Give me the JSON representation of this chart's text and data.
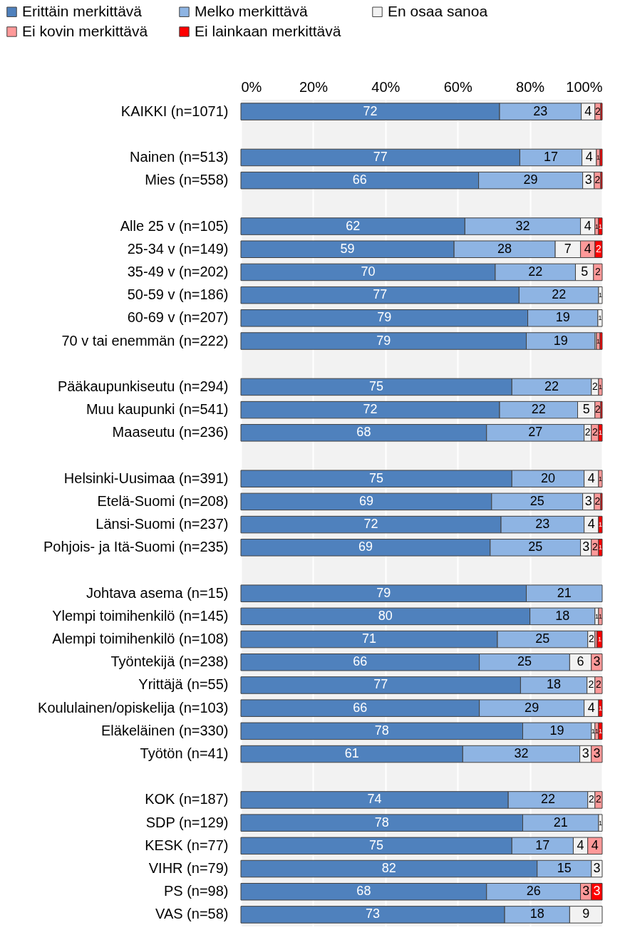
{
  "chart_data": {
    "type": "bar",
    "orientation": "horizontal",
    "stacked": true,
    "legend": "top left",
    "grid": "x",
    "categories": [
      "KAIKKI (n=1071)",
      null,
      "Nainen (n=513)",
      "Mies (n=558)",
      null,
      "Alle 25 v (n=105)",
      "25-34 v (n=149)",
      "35-49 v (n=202)",
      "50-59 v (n=186)",
      "60-69 v (n=207)",
      "70 v tai enemmän (n=222)",
      null,
      "Pääkaupunkiseutu (n=294)",
      "Muu kaupunki (n=541)",
      "Maaseutu (n=236)",
      null,
      "Helsinki-Uusimaa (n=391)",
      "Etelä-Suomi (n=208)",
      "Länsi-Suomi (n=237)",
      "Pohjois- ja Itä-Suomi (n=235)",
      null,
      "Johtava asema (n=15)",
      "Ylempi toimihenkilö (n=145)",
      "Alempi toimihenkilö (n=108)",
      "Työntekijä (n=238)",
      "Yrittäjä (n=55)",
      "Koululainen/opiskelija (n=103)",
      "Eläkeläinen (n=330)",
      "Työtön (n=41)",
      null,
      "KOK (n=187)",
      "SDP (n=129)",
      "KESK (n=77)",
      "VIHR (n=79)",
      "PS (n=98)",
      "VAS (n=58)"
    ],
    "xlim": [
      0,
      100
    ],
    "xticks": [
      {
        "value": 0,
        "label": "0%"
      },
      {
        "value": 20,
        "label": "20%"
      },
      {
        "value": 40,
        "label": "40%"
      },
      {
        "value": 60,
        "label": "60%"
      },
      {
        "value": 80,
        "label": "80%"
      },
      {
        "value": 100,
        "label": "100%"
      }
    ],
    "series": [
      {
        "name": "Erittäin merkittävä",
        "color": "#4f81bd",
        "values": [
          71.6,
          null,
          77.2,
          65.8,
          null,
          62,
          59,
          70.4,
          77,
          79.4,
          79,
          null,
          75,
          71.6,
          68,
          null,
          75,
          69.4,
          72,
          69,
          null,
          79,
          80,
          71,
          66,
          77.4,
          66,
          78,
          61.4,
          null,
          74,
          78,
          75,
          82,
          68,
          73
        ],
        "value_labels": [
          "72",
          null,
          "77",
          "66",
          null,
          "62",
          "59",
          "70",
          "77",
          "79",
          "79",
          null,
          "75",
          "72",
          "68",
          null,
          "75",
          "69",
          "72",
          "69",
          null,
          "79",
          "80",
          "71",
          "66",
          "77",
          "66",
          "78",
          "61",
          null,
          "74",
          "78",
          "75",
          "82",
          "68",
          "73"
        ]
      },
      {
        "name": "Melko merkittävä",
        "color": "#8eb4e3",
        "values": [
          22.6,
          null,
          17.2,
          28.8,
          null,
          32,
          28,
          22.2,
          22,
          19.4,
          19,
          null,
          22,
          21.6,
          27,
          null,
          20,
          25.2,
          23,
          25,
          null,
          21,
          18,
          25,
          25,
          18.4,
          29,
          19,
          32.4,
          null,
          22,
          21,
          17,
          15,
          26,
          18
        ],
        "value_labels": [
          "23",
          null,
          "17",
          "29",
          null,
          "32",
          "28",
          "22",
          "22",
          "19",
          "19",
          null,
          "22",
          "22",
          "27",
          null,
          "20",
          "25",
          "23",
          "25",
          null,
          "21",
          "18",
          "25",
          "25",
          "18",
          "29",
          "19",
          "32",
          null,
          "22",
          "21",
          "17",
          "15",
          "26",
          "18"
        ]
      },
      {
        "name": "En osaa sanoa",
        "color": "#f2f2f2",
        "values": [
          3.8,
          null,
          4,
          3.2,
          null,
          4,
          7,
          5,
          1,
          1.2,
          0.4,
          null,
          2,
          4.8,
          2,
          null,
          4,
          3.2,
          4,
          3,
          null,
          null,
          1,
          2,
          6,
          2.2,
          4,
          1,
          3.2,
          null,
          2,
          1,
          4,
          3,
          null,
          9
        ],
        "value_labels": [
          "4",
          null,
          "4",
          "3",
          null,
          "4",
          "7",
          "5",
          "1",
          "1",
          null,
          null,
          "2",
          "5",
          "2",
          null,
          "4",
          "3",
          "4",
          "3",
          null,
          null,
          "1",
          "2",
          "6",
          "2",
          "4",
          "1",
          "3",
          null,
          "2",
          "1",
          "4",
          "3",
          null,
          "9"
        ]
      },
      {
        "name": "Ei kovin merkittävä",
        "color": "#ff9999",
        "values": [
          1.6,
          null,
          1,
          1.8,
          null,
          1,
          4,
          2.4,
          null,
          null,
          1,
          null,
          1,
          1.6,
          2,
          null,
          1,
          1.8,
          null,
          2,
          null,
          null,
          1,
          0.6,
          3,
          2,
          null,
          1,
          3,
          null,
          2,
          null,
          4,
          null,
          3,
          null
        ],
        "value_labels": [
          "2",
          null,
          "1",
          "2",
          null,
          "1",
          "4",
          "2",
          null,
          null,
          "1",
          null,
          "1",
          "2",
          "2",
          null,
          "1",
          "2",
          null,
          "2",
          null,
          null,
          "1",
          null,
          "3",
          "2",
          null,
          "1",
          "3",
          null,
          "2",
          null,
          "4",
          null,
          "3",
          null
        ]
      },
      {
        "name": "Ei lainkaan merkittävä",
        "color": "#ff0000",
        "values": [
          0.4,
          null,
          0.6,
          0.4,
          null,
          1,
          2,
          null,
          null,
          null,
          0.6,
          null,
          null,
          0.4,
          1,
          null,
          null,
          0.4,
          1,
          1,
          null,
          null,
          null,
          1.4,
          null,
          null,
          1,
          1,
          null,
          null,
          null,
          null,
          null,
          null,
          3,
          null
        ],
        "value_labels": [
          null,
          null,
          null,
          null,
          null,
          "1",
          "2",
          null,
          null,
          null,
          null,
          null,
          null,
          null,
          "1",
          null,
          null,
          null,
          "1",
          "1",
          null,
          null,
          null,
          "1",
          null,
          null,
          "1",
          "1",
          null,
          null,
          null,
          null,
          null,
          null,
          "3",
          null
        ]
      }
    ]
  }
}
